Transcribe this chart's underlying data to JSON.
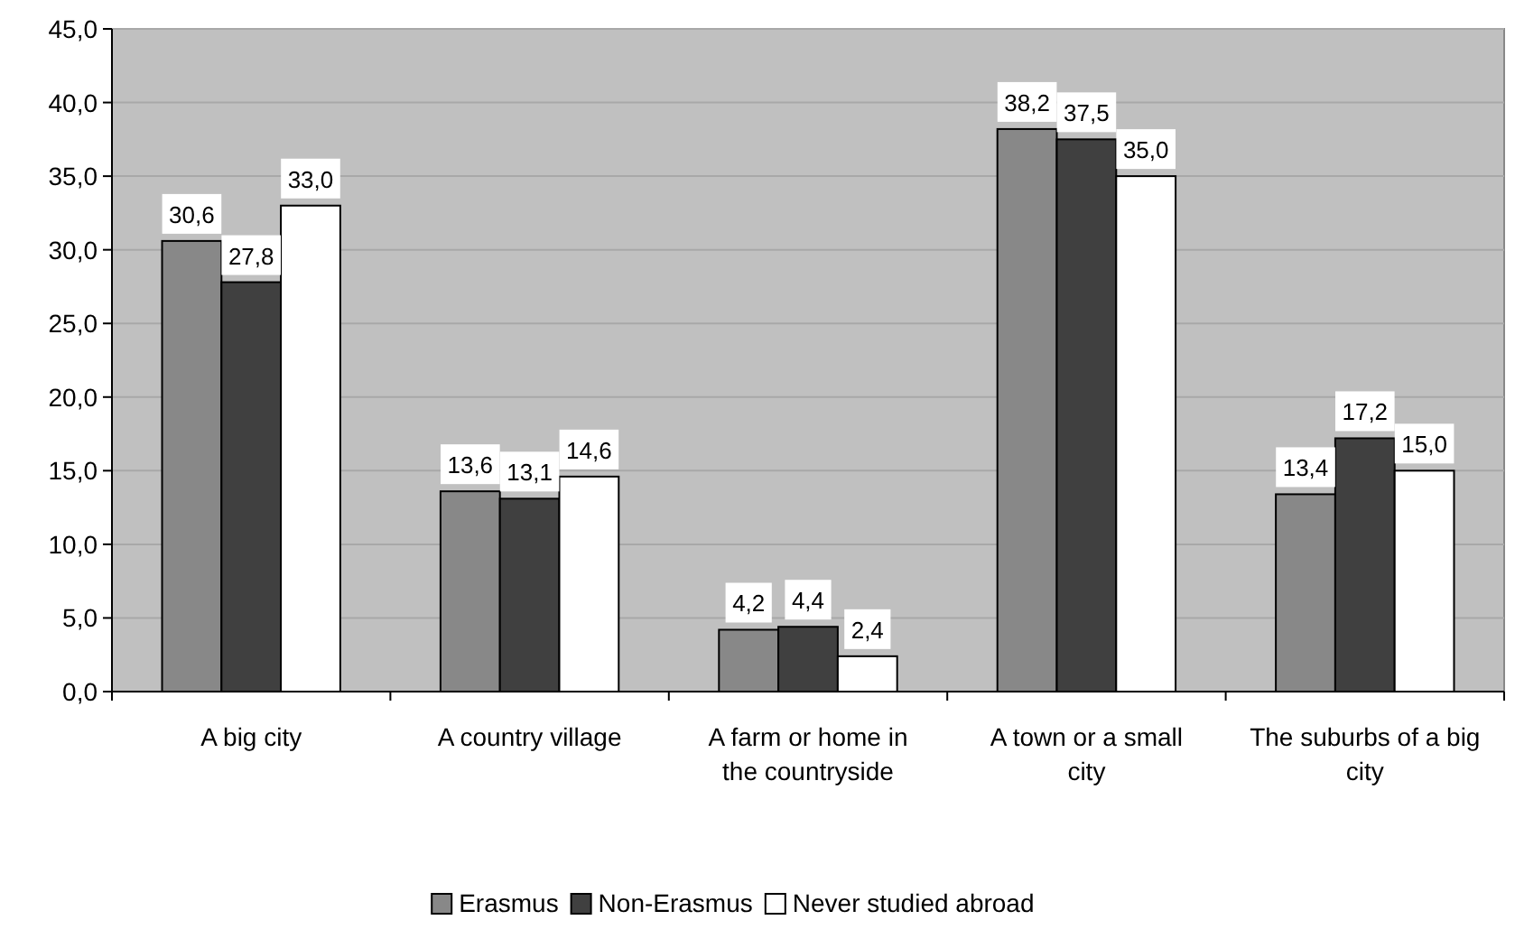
{
  "chart_data": {
    "type": "bar",
    "categories": [
      "A big city",
      "A country village",
      "A farm or home in the countryside",
      "A town or a small city",
      "The suburbs of a big city"
    ],
    "series": [
      {
        "name": "Erasmus",
        "color": "#888888",
        "values": [
          30.6,
          13.6,
          4.2,
          38.2,
          13.4
        ],
        "value_labels": [
          "30,6",
          "13,6",
          "4,2",
          "38,2",
          "13,4"
        ]
      },
      {
        "name": "Non-Erasmus",
        "color": "#404040",
        "values": [
          27.8,
          13.1,
          4.4,
          37.5,
          17.2
        ],
        "value_labels": [
          "27,8",
          "13,1",
          "4,4",
          "37,5",
          "17,2"
        ]
      },
      {
        "name": "Never studied abroad",
        "color": "#ffffff",
        "values": [
          33.0,
          14.6,
          2.4,
          35.0,
          15.0
        ],
        "value_labels": [
          "33,0",
          "14,6",
          "2,4",
          "35,0",
          "15,0"
        ]
      }
    ],
    "ylim": [
      0,
      45
    ],
    "yticks": [
      {
        "value": 0,
        "label": "0,0"
      },
      {
        "value": 5,
        "label": "5,0"
      },
      {
        "value": 10,
        "label": "10,0"
      },
      {
        "value": 15,
        "label": "15,0"
      },
      {
        "value": 20,
        "label": "20,0"
      },
      {
        "value": 25,
        "label": "25,0"
      },
      {
        "value": 30,
        "label": "30,0"
      },
      {
        "value": 35,
        "label": "35,0"
      },
      {
        "value": 40,
        "label": "40,0"
      },
      {
        "value": 45,
        "label": "45,0"
      }
    ],
    "grid": "y",
    "legend": "bottom"
  }
}
